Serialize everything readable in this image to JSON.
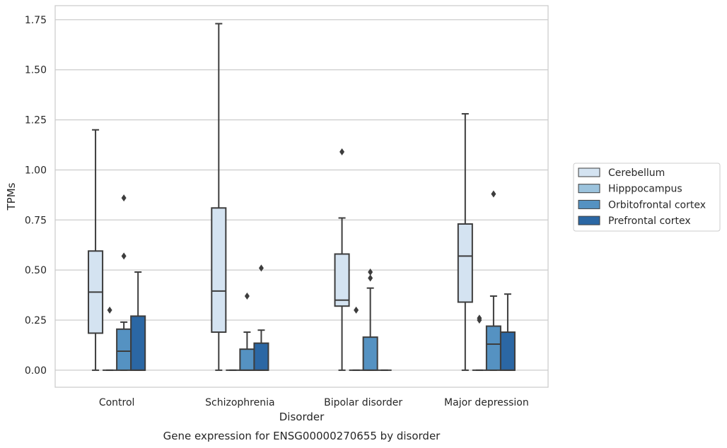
{
  "chart_data": {
    "type": "box",
    "title": "",
    "xlabel": "Disorder",
    "ylabel": "TPMs",
    "caption": "Gene expression for ENSG00000270655 by disorder",
    "categories": [
      "Control",
      "Schizophrenia",
      "Bipolar disorder",
      "Major depression"
    ],
    "ylim": [
      -0.085,
      1.82
    ],
    "yticks": [
      0.0,
      0.25,
      0.5,
      0.75,
      1.0,
      1.25,
      1.5,
      1.75
    ],
    "ytick_labels": [
      "0.00",
      "0.25",
      "0.50",
      "0.75",
      "1.00",
      "1.25",
      "1.50",
      "1.75"
    ],
    "grid": true,
    "legend_position": "right",
    "line_color": "#3d3d3d",
    "series": [
      {
        "name": "Cerebellum",
        "color": "#d4e3f1",
        "boxes": [
          {
            "whislo": 0.0,
            "q1": 0.185,
            "med": 0.39,
            "q3": 0.595,
            "whishi": 1.2,
            "fliers": []
          },
          {
            "whislo": 0.0,
            "q1": 0.19,
            "med": 0.395,
            "q3": 0.81,
            "whishi": 1.73,
            "fliers": []
          },
          {
            "whislo": 0.0,
            "q1": 0.32,
            "med": 0.35,
            "q3": 0.58,
            "whishi": 0.76,
            "fliers": [
              1.09
            ]
          },
          {
            "whislo": 0.0,
            "q1": 0.34,
            "med": 0.57,
            "q3": 0.73,
            "whishi": 1.28,
            "fliers": []
          }
        ]
      },
      {
        "name": "Hipppocampus",
        "color": "#9cc3dd",
        "boxes": [
          {
            "whislo": 0.0,
            "q1": 0.0,
            "med": 0.0,
            "q3": 0.0,
            "whishi": 0.0,
            "fliers": [
              0.3
            ]
          },
          {
            "whislo": 0.0,
            "q1": 0.0,
            "med": 0.0,
            "q3": 0.0,
            "whishi": 0.0,
            "fliers": []
          },
          {
            "whislo": 0.0,
            "q1": 0.0,
            "med": 0.0,
            "q3": 0.0,
            "whishi": 0.0,
            "fliers": [
              0.3
            ]
          },
          {
            "whislo": 0.0,
            "q1": 0.0,
            "med": 0.0,
            "q3": 0.0,
            "whishi": 0.0,
            "fliers": [
              0.25,
              0.26
            ]
          }
        ]
      },
      {
        "name": "Orbitofrontal cortex",
        "color": "#5592c2",
        "boxes": [
          {
            "whislo": 0.0,
            "q1": 0.0,
            "med": 0.095,
            "q3": 0.205,
            "whishi": 0.24,
            "fliers": [
              0.57,
              0.86
            ]
          },
          {
            "whislo": 0.0,
            "q1": 0.0,
            "med": 0.0,
            "q3": 0.105,
            "whishi": 0.19,
            "fliers": [
              0.37
            ]
          },
          {
            "whislo": 0.0,
            "q1": 0.0,
            "med": 0.0,
            "q3": 0.165,
            "whishi": 0.41,
            "fliers": [
              0.46,
              0.49
            ]
          },
          {
            "whislo": 0.0,
            "q1": 0.0,
            "med": 0.13,
            "q3": 0.22,
            "whishi": 0.37,
            "fliers": [
              0.88
            ]
          }
        ]
      },
      {
        "name": "Prefrontal cortex",
        "color": "#2b67a4",
        "boxes": [
          {
            "whislo": 0.0,
            "q1": 0.0,
            "med": 0.0,
            "q3": 0.27,
            "whishi": 0.49,
            "fliers": []
          },
          {
            "whislo": 0.0,
            "q1": 0.0,
            "med": 0.0,
            "q3": 0.135,
            "whishi": 0.2,
            "fliers": [
              0.51
            ]
          },
          {
            "whislo": 0.0,
            "q1": 0.0,
            "med": 0.0,
            "q3": 0.0,
            "whishi": 0.0,
            "fliers": []
          },
          {
            "whislo": 0.0,
            "q1": 0.0,
            "med": 0.0,
            "q3": 0.19,
            "whishi": 0.38,
            "fliers": []
          }
        ]
      }
    ]
  }
}
